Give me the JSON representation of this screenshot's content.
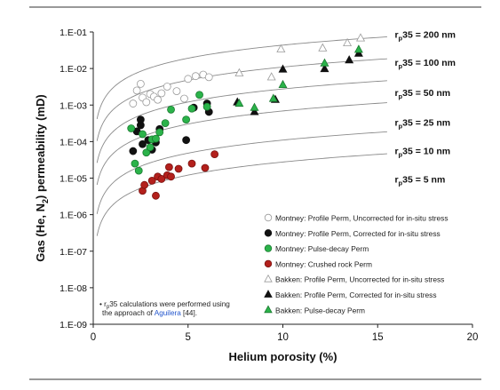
{
  "chart_data": {
    "type": "scatter",
    "xlabel": "Helium porosity (%)",
    "ylabel": "Gas (He, N₂) permeability (mD)",
    "xlim": [
      0,
      20
    ],
    "ylim_log10": [
      -9,
      -1
    ],
    "y_scale": "log",
    "x_ticks": [
      "0",
      "5",
      "10",
      "15",
      "20"
    ],
    "y_ticks": [
      "1.E-09",
      "1.E-08",
      "1.E-07",
      "1.E-06",
      "1.E-05",
      "1.E-04",
      "1.E-03",
      "1.E-02",
      "1.E-01"
    ],
    "grid": false,
    "legend_position": "lower-right",
    "series": [
      {
        "name": "Montney: Profile Perm, Uncorrected for in-situ stress",
        "marker": "circle",
        "fill": "#ffffff",
        "stroke": "#9a9a9a",
        "points": [
          [
            2.1,
            0.0011
          ],
          [
            2.3,
            0.0025
          ],
          [
            2.5,
            0.0038
          ],
          [
            2.6,
            0.0016
          ],
          [
            2.8,
            0.0012
          ],
          [
            3.0,
            0.002
          ],
          [
            3.2,
            0.0017
          ],
          [
            3.4,
            0.0014
          ],
          [
            3.6,
            0.0021
          ],
          [
            3.9,
            0.0032
          ],
          [
            4.4,
            0.0024
          ],
          [
            4.8,
            0.0015
          ],
          [
            5.0,
            0.0052
          ],
          [
            5.4,
            0.0062
          ],
          [
            5.8,
            0.0068
          ],
          [
            6.1,
            0.0058
          ]
        ]
      },
      {
        "name": "Montney: Profile Perm, Corrected for in-situ stress",
        "marker": "circle",
        "fill": "#111111",
        "stroke": "#111111",
        "points": [
          [
            2.1,
            5.5e-05
          ],
          [
            2.3,
            0.00019
          ],
          [
            2.5,
            0.00028
          ],
          [
            2.5,
            0.0004
          ],
          [
            2.6,
            8.5e-05
          ],
          [
            2.9,
            0.00011
          ],
          [
            3.1,
            6e-05
          ],
          [
            3.3,
            9.5e-05
          ],
          [
            3.5,
            0.00022
          ],
          [
            4.9,
            0.00011
          ],
          [
            5.3,
            0.00085
          ],
          [
            6.0,
            0.0011
          ],
          [
            6.1,
            0.00065
          ]
        ]
      },
      {
        "name": "Montney: Pulse-decay Perm",
        "marker": "circle",
        "fill": "#2bb34a",
        "stroke": "#1a7a30",
        "points": [
          [
            2.0,
            0.00023
          ],
          [
            2.2,
            2.5e-05
          ],
          [
            2.4,
            1.6e-05
          ],
          [
            2.6,
            0.00016
          ],
          [
            2.8,
            5e-05
          ],
          [
            3.0,
            7e-05
          ],
          [
            3.1,
            0.000115
          ],
          [
            3.3,
            0.00012
          ],
          [
            3.5,
            0.00018
          ],
          [
            3.8,
            0.00032
          ],
          [
            4.1,
            0.00075
          ],
          [
            4.9,
            0.0004
          ],
          [
            5.2,
            0.0008
          ],
          [
            5.6,
            0.0019
          ],
          [
            6.0,
            0.0009
          ]
        ]
      },
      {
        "name": "Montney: Crushed rock Perm",
        "marker": "circle",
        "fill": "#b3201c",
        "stroke": "#7a1210",
        "points": [
          [
            2.6,
            4.5e-06
          ],
          [
            2.7,
            6.5e-06
          ],
          [
            3.1,
            8.5e-06
          ],
          [
            3.3,
            3.3e-06
          ],
          [
            3.4,
            1.1e-05
          ],
          [
            3.6,
            9.5e-06
          ],
          [
            3.9,
            1.2e-05
          ],
          [
            4.1,
            1.1e-05
          ],
          [
            4.0,
            2e-05
          ],
          [
            4.5,
            1.8e-05
          ],
          [
            5.2,
            2.5e-05
          ],
          [
            5.9,
            1.9e-05
          ],
          [
            6.4,
            4.5e-05
          ]
        ]
      },
      {
        "name": "Bakken: Profile Perm, Uncorrected for in-situ stress",
        "marker": "triangle",
        "fill": "#ffffff",
        "stroke": "#9a9a9a",
        "points": [
          [
            7.7,
            0.0075
          ],
          [
            9.4,
            0.0058
          ],
          [
            9.9,
            0.034
          ],
          [
            12.1,
            0.036
          ],
          [
            13.4,
            0.05
          ],
          [
            14.1,
            0.068
          ]
        ]
      },
      {
        "name": "Bakken: Profile Perm, Corrected for in-situ stress",
        "marker": "triangle",
        "fill": "#111111",
        "stroke": "#111111",
        "points": [
          [
            7.6,
            0.0012
          ],
          [
            8.5,
            0.00065
          ],
          [
            9.6,
            0.0014
          ],
          [
            10.0,
            0.0095
          ],
          [
            12.2,
            0.0098
          ],
          [
            13.5,
            0.017
          ],
          [
            14.0,
            0.026
          ]
        ]
      },
      {
        "name": "Bakken: Pulse-decay Perm",
        "marker": "triangle",
        "fill": "#2bb34a",
        "stroke": "#1a7a30",
        "points": [
          [
            7.7,
            0.0011
          ],
          [
            8.5,
            0.00085
          ],
          [
            9.5,
            0.0015
          ],
          [
            10.0,
            0.0036
          ],
          [
            12.2,
            0.014
          ],
          [
            14.0,
            0.033
          ]
        ]
      }
    ],
    "curves": [
      {
        "label": "rₚ35 = 200 nm",
        "a": 0.00282,
        "b": 1.19,
        "label_anchor": [
          15.9,
          0.07
        ]
      },
      {
        "label": "rₚ35 = 100 nm",
        "a": 0.000708,
        "b": 1.19,
        "label_anchor": [
          15.9,
          0.012
        ]
      },
      {
        "label": "rₚ35 = 50 nm",
        "a": 0.000178,
        "b": 1.19,
        "label_anchor": [
          15.9,
          0.0018
        ]
      },
      {
        "label": "rₚ35 = 25 nm",
        "a": 4.45e-05,
        "b": 1.19,
        "label_anchor": [
          15.9,
          0.00027
        ]
      },
      {
        "label": "rₚ35 = 10 nm",
        "a": 7.1e-06,
        "b": 1.19,
        "label_anchor": [
          15.9,
          4.5e-05
        ]
      },
      {
        "label": "rₚ35 = 5 nm",
        "a": 1.78e-06,
        "b": 1.19,
        "label_anchor": [
          15.9,
          7.5e-06
        ]
      }
    ],
    "curve_label_parts": [
      {
        "prefix": "r",
        "sub": "p",
        "suffix": "35 = 200 nm"
      },
      {
        "prefix": "r",
        "sub": "p",
        "suffix": "35 = 100 nm"
      },
      {
        "prefix": "r",
        "sub": "p",
        "suffix": "35 = 50 nm"
      },
      {
        "prefix": "r",
        "sub": "p",
        "suffix": "35 = 25 nm"
      },
      {
        "prefix": "r",
        "sub": "p",
        "suffix": "35 = 10 nm"
      },
      {
        "prefix": "r",
        "sub": "p",
        "suffix": "35 = 5 nm"
      }
    ],
    "footnote": {
      "line1_prefix": "• r",
      "line1_sub": "p",
      "line1_rest": "35 calculations were performed using",
      "line2_prefix": "the approach of ",
      "line2_link": "Aguilera",
      "line2_ref": " [44].",
      "link_color": "#2255cc"
    },
    "ylabel_parts": {
      "pre": "Gas (He, N",
      "sub": "2",
      "post": ") permeability (mD)"
    }
  }
}
